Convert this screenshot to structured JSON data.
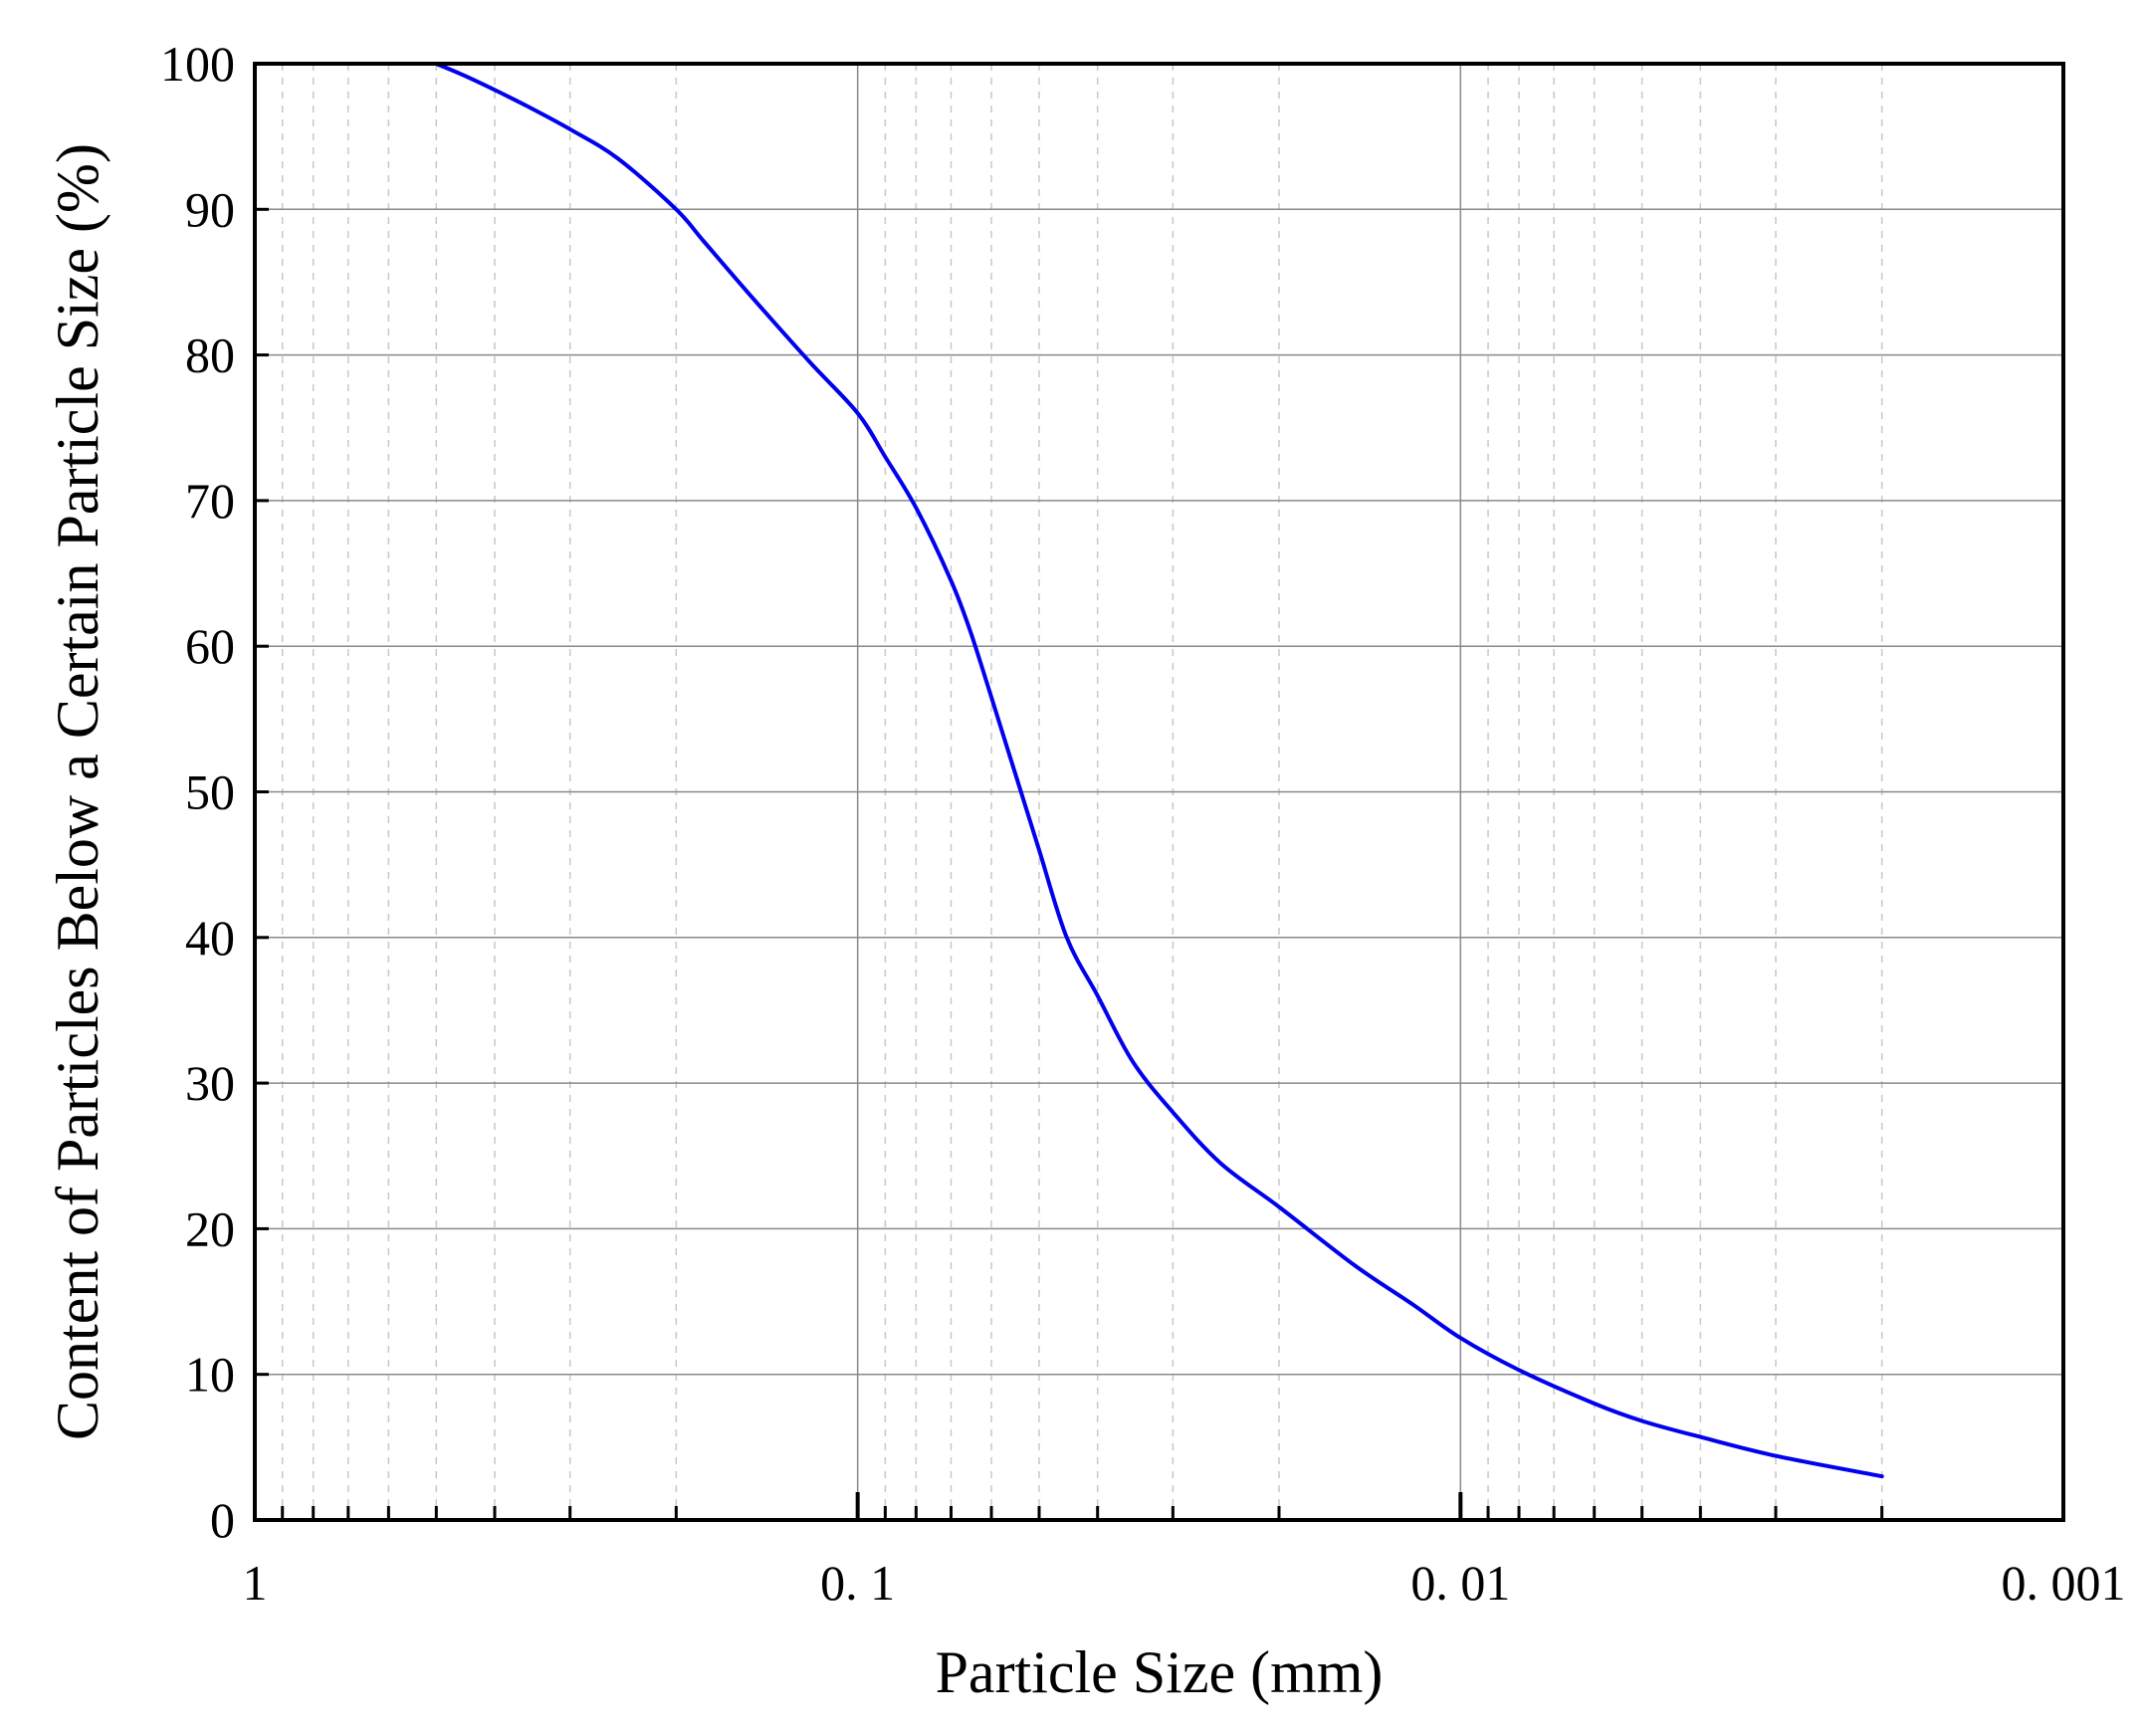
{
  "chart_data": {
    "type": "line",
    "title": "",
    "xlabel": "Particle Size (mm)",
    "ylabel": "Content of Particles Below a Certain Particle Size (%)",
    "x_scale": "log",
    "x_reversed": true,
    "xlim": [
      1,
      0.001
    ],
    "ylim": [
      0,
      100
    ],
    "x_ticks": [
      1,
      0.1,
      0.01,
      0.001
    ],
    "x_tick_labels": [
      "1",
      "0. 1",
      "0. 01",
      "0. 001"
    ],
    "y_ticks": [
      0,
      10,
      20,
      30,
      40,
      50,
      60,
      70,
      80,
      90,
      100
    ],
    "y_tick_labels": [
      "0",
      "10",
      "20",
      "30",
      "40",
      "50",
      "60",
      "70",
      "80",
      "90",
      "100"
    ],
    "grid": true,
    "legend": "none",
    "line_color": "#0000ee",
    "series": [
      {
        "x": [
          0.5,
          0.45,
          0.4,
          0.35,
          0.3,
          0.25,
          0.2,
          0.18,
          0.15,
          0.12,
          0.1,
          0.09,
          0.08,
          0.07,
          0.065,
          0.06,
          0.055,
          0.05,
          0.045,
          0.04,
          0.035,
          0.03,
          0.025,
          0.02,
          0.015,
          0.012,
          0.01,
          0.008,
          0.006,
          0.005,
          0.004,
          0.003,
          0.002
        ],
        "y": [
          100,
          99.2,
          98.2,
          97,
          95.5,
          93.5,
          90,
          87.8,
          84,
          79.5,
          76,
          73,
          69.5,
          64.5,
          61,
          56.5,
          51.5,
          46,
          40,
          36,
          31.5,
          28,
          24.5,
          21.5,
          17.5,
          14.8,
          12.5,
          10.3,
          8,
          6.8,
          5.7,
          4.4,
          3
        ]
      }
    ]
  }
}
